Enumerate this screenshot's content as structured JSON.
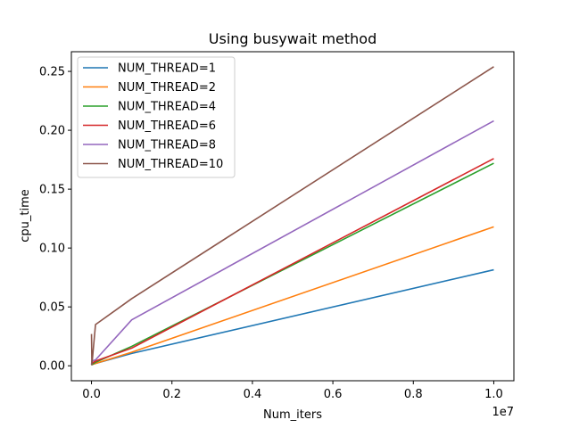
{
  "chart_data": {
    "type": "line",
    "title": "Using busywait method",
    "xlabel": "Num_iters",
    "ylabel": "cpu_time",
    "x_offset_label": "1e7",
    "xlim": [
      -500000,
      10500000
    ],
    "ylim": [
      -0.0127,
      0.2667
    ],
    "xticks": [
      0,
      2000000,
      4000000,
      6000000,
      8000000,
      10000000
    ],
    "xtick_labels": [
      "0.0",
      "0.2",
      "0.4",
      "0.6",
      "0.8",
      "1.0"
    ],
    "yticks": [
      0.0,
      0.05,
      0.1,
      0.15,
      0.2,
      0.25
    ],
    "ytick_labels": [
      "0.00",
      "0.05",
      "0.10",
      "0.15",
      "0.20",
      "0.25"
    ],
    "grid": false,
    "legend_position": "upper-left",
    "x": [
      0,
      10000,
      100000,
      1000000,
      10000000
    ],
    "series": [
      {
        "name": "NUM_THREAD=1",
        "color": "#1f77b4",
        "values": [
          0.001,
          0.001,
          0.002,
          0.0105,
          0.0815
        ]
      },
      {
        "name": "NUM_THREAD=2",
        "color": "#ff7f0e",
        "values": [
          0.0005,
          0.001,
          0.002,
          0.0115,
          0.118
        ]
      },
      {
        "name": "NUM_THREAD=4",
        "color": "#2ca02c",
        "values": [
          0.0005,
          0.001,
          0.003,
          0.0165,
          0.172
        ]
      },
      {
        "name": "NUM_THREAD=6",
        "color": "#d62728",
        "values": [
          0.001,
          0.002,
          0.004,
          0.015,
          0.176
        ]
      },
      {
        "name": "NUM_THREAD=8",
        "color": "#9467bd",
        "values": [
          0.001,
          0.004,
          0.005,
          0.039,
          0.208
        ]
      },
      {
        "name": "NUM_THREAD=10",
        "color": "#8c564b",
        "values": [
          0.027,
          0.001,
          0.035,
          0.057,
          0.254
        ]
      }
    ]
  }
}
